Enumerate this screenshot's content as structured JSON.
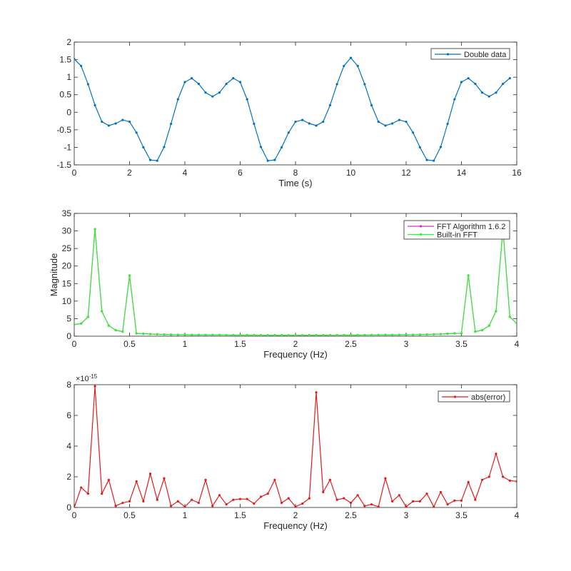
{
  "chart_data": [
    {
      "type": "line",
      "title": "",
      "xlabel": "Time (s)",
      "ylabel": "",
      "xlim": [
        0,
        16
      ],
      "ylim": [
        -1.5,
        2
      ],
      "xticks": [
        0,
        2,
        4,
        6,
        8,
        10,
        12,
        14,
        16
      ],
      "yticks": [
        -1.5,
        -1,
        -0.5,
        0,
        0.5,
        1,
        1.5,
        2
      ],
      "xtick_labels": [
        "0",
        "2",
        "4",
        "6",
        "8",
        "10",
        "12",
        "14",
        "16"
      ],
      "ytick_labels": [
        "-1.5",
        "-1",
        "-0.5",
        "0",
        "0.5",
        "1",
        "1.5",
        "2"
      ],
      "grid": false,
      "legend": "top-right",
      "series": [
        {
          "name": "Double data",
          "color": "#0072bd",
          "marker": "dot",
          "x": [
            0,
            0.25,
            0.5,
            0.75,
            1,
            1.25,
            1.5,
            1.75,
            2,
            2.25,
            2.5,
            2.75,
            3,
            3.25,
            3.5,
            3.75,
            4,
            4.25,
            4.5,
            4.75,
            5,
            5.25,
            5.5,
            5.75,
            6,
            6.25,
            6.5,
            6.75,
            7,
            7.25,
            7.5,
            7.75,
            8,
            8.25,
            8.5,
            8.75,
            9,
            9.25,
            9.5,
            9.75,
            10,
            10.25,
            10.5,
            10.75,
            11,
            11.25,
            11.5,
            11.75,
            12,
            12.25,
            12.5,
            12.75,
            13,
            13.25,
            13.5,
            13.75,
            14,
            14.25,
            14.5,
            14.75,
            15,
            15.25,
            15.5,
            15.75
          ],
          "values": [
            1.52,
            1.32,
            0.8,
            0.2,
            -0.27,
            -0.38,
            -0.32,
            -0.22,
            -0.27,
            -0.58,
            -1.0,
            -1.36,
            -1.38,
            -0.99,
            -0.33,
            0.37,
            0.86,
            0.97,
            0.81,
            0.56,
            0.45,
            0.56,
            0.81,
            0.97,
            0.86,
            0.37,
            -0.33,
            -0.99,
            -1.38,
            -1.36,
            -1.0,
            -0.58,
            -0.27,
            -0.22,
            -0.32,
            -0.38,
            -0.27,
            0.2,
            0.8,
            1.32,
            1.55,
            1.32,
            0.8,
            0.2,
            -0.27,
            -0.38,
            -0.32,
            -0.22,
            -0.27,
            -0.58,
            -1.0,
            -1.36,
            -1.38,
            -0.99,
            -0.33,
            0.37,
            0.86,
            0.97,
            0.81,
            0.56,
            0.45,
            0.56,
            0.81,
            0.97
          ]
        }
      ]
    },
    {
      "type": "line",
      "title": "",
      "xlabel": "Frequency (Hz)",
      "ylabel": "Magnitude",
      "xlim": [
        0,
        4
      ],
      "ylim": [
        0,
        35
      ],
      "xticks": [
        0,
        0.5,
        1,
        1.5,
        2,
        2.5,
        3,
        3.5,
        4
      ],
      "yticks": [
        0,
        5,
        10,
        15,
        20,
        25,
        30,
        35
      ],
      "xtick_labels": [
        "0",
        "0.5",
        "1",
        "1.5",
        "2",
        "2.5",
        "3",
        "3.5",
        "4"
      ],
      "ytick_labels": [
        "0",
        "5",
        "10",
        "15",
        "20",
        "25",
        "30",
        "35"
      ],
      "grid": false,
      "legend": "top-right",
      "series": [
        {
          "name": "FFT Algorithm 1.6.2",
          "color": "#cc33cc",
          "marker": "dot",
          "x": [
            0,
            0.0625,
            0.125,
            0.1875,
            0.25,
            0.3125,
            0.375,
            0.4375,
            0.5,
            0.5625,
            0.625,
            0.6875,
            0.75,
            0.8125,
            0.875,
            0.9375,
            1,
            1.0625,
            1.125,
            1.1875,
            1.25,
            1.3125,
            1.375,
            1.4375,
            1.5,
            1.5625,
            1.625,
            1.6875,
            1.75,
            1.8125,
            1.875,
            1.9375,
            2,
            2.0625,
            2.125,
            2.1875,
            2.25,
            2.3125,
            2.375,
            2.4375,
            2.5,
            2.5625,
            2.625,
            2.6875,
            2.75,
            2.8125,
            2.875,
            2.9375,
            3,
            3.0625,
            3.125,
            3.1875,
            3.25,
            3.3125,
            3.375,
            3.4375,
            3.5,
            3.5625,
            3.625,
            3.6875,
            3.75,
            3.8125,
            3.875,
            3.9375,
            4
          ],
          "values": [
            3.3,
            3.6,
            5.5,
            30.5,
            7.1,
            3.0,
            1.7,
            1.3,
            17.3,
            0.8,
            0.7,
            0.6,
            0.55,
            0.5,
            0.45,
            0.42,
            0.4,
            0.38,
            0.36,
            0.35,
            0.34,
            0.33,
            0.32,
            0.31,
            0.3,
            0.3,
            0.29,
            0.29,
            0.28,
            0.28,
            0.28,
            0.27,
            0.27,
            0.27,
            0.28,
            0.28,
            0.28,
            0.29,
            0.29,
            0.3,
            0.3,
            0.31,
            0.32,
            0.33,
            0.34,
            0.35,
            0.36,
            0.38,
            0.4,
            0.42,
            0.45,
            0.5,
            0.55,
            0.6,
            0.7,
            0.8,
            0.8,
            17.3,
            1.3,
            1.7,
            3.0,
            7.1,
            30.5,
            5.5,
            3.6
          ]
        },
        {
          "name": "Built-in FFT",
          "color": "#33ee33",
          "marker": "dot",
          "x": [
            0,
            0.0625,
            0.125,
            0.1875,
            0.25,
            0.3125,
            0.375,
            0.4375,
            0.5,
            0.5625,
            0.625,
            0.6875,
            0.75,
            0.8125,
            0.875,
            0.9375,
            1,
            1.0625,
            1.125,
            1.1875,
            1.25,
            1.3125,
            1.375,
            1.4375,
            1.5,
            1.5625,
            1.625,
            1.6875,
            1.75,
            1.8125,
            1.875,
            1.9375,
            2,
            2.0625,
            2.125,
            2.1875,
            2.25,
            2.3125,
            2.375,
            2.4375,
            2.5,
            2.5625,
            2.625,
            2.6875,
            2.75,
            2.8125,
            2.875,
            2.9375,
            3,
            3.0625,
            3.125,
            3.1875,
            3.25,
            3.3125,
            3.375,
            3.4375,
            3.5,
            3.5625,
            3.625,
            3.6875,
            3.75,
            3.8125,
            3.875,
            3.9375,
            4
          ],
          "values": [
            3.3,
            3.6,
            5.5,
            30.5,
            7.1,
            3.0,
            1.7,
            1.3,
            17.3,
            0.8,
            0.7,
            0.6,
            0.55,
            0.5,
            0.45,
            0.42,
            0.4,
            0.38,
            0.36,
            0.35,
            0.34,
            0.33,
            0.32,
            0.31,
            0.3,
            0.3,
            0.29,
            0.29,
            0.28,
            0.28,
            0.28,
            0.27,
            0.27,
            0.27,
            0.28,
            0.28,
            0.28,
            0.29,
            0.29,
            0.3,
            0.3,
            0.31,
            0.32,
            0.33,
            0.34,
            0.35,
            0.36,
            0.38,
            0.4,
            0.42,
            0.45,
            0.5,
            0.55,
            0.6,
            0.7,
            0.8,
            0.8,
            17.3,
            1.3,
            1.7,
            3.0,
            7.1,
            30.5,
            5.5,
            3.6
          ]
        }
      ]
    },
    {
      "type": "line",
      "title": "",
      "xlabel": "Frequency (Hz)",
      "ylabel": "",
      "xlim": [
        0,
        4
      ],
      "ylim": [
        0,
        8
      ],
      "y_exponent_label": "×10",
      "y_exponent": "-15",
      "xticks": [
        0,
        0.5,
        1,
        1.5,
        2,
        2.5,
        3,
        3.5,
        4
      ],
      "yticks": [
        0,
        2,
        4,
        6,
        8
      ],
      "xtick_labels": [
        "0",
        "0.5",
        "1",
        "1.5",
        "2",
        "2.5",
        "3",
        "3.5",
        "4"
      ],
      "ytick_labels": [
        "0",
        "2",
        "4",
        "6",
        "8"
      ],
      "grid": false,
      "legend": "top-right",
      "series": [
        {
          "name": "abs(error)",
          "color": "#e31a1c",
          "marker": "dot",
          "x": [
            0,
            0.0625,
            0.125,
            0.1875,
            0.25,
            0.3125,
            0.375,
            0.4375,
            0.5,
            0.5625,
            0.625,
            0.6875,
            0.75,
            0.8125,
            0.875,
            0.9375,
            1,
            1.0625,
            1.125,
            1.1875,
            1.25,
            1.3125,
            1.375,
            1.4375,
            1.5,
            1.5625,
            1.625,
            1.6875,
            1.75,
            1.8125,
            1.875,
            1.9375,
            2,
            2.0625,
            2.125,
            2.1875,
            2.25,
            2.3125,
            2.375,
            2.4375,
            2.5,
            2.5625,
            2.625,
            2.6875,
            2.75,
            2.8125,
            2.875,
            2.9375,
            3,
            3.0625,
            3.125,
            3.1875,
            3.25,
            3.3125,
            3.375,
            3.4375,
            3.5,
            3.5625,
            3.625,
            3.6875,
            3.75,
            3.8125,
            3.875,
            3.9375,
            4
          ],
          "values": [
            0,
            1.3,
            0.9,
            7.9,
            0.9,
            1.8,
            0.1,
            0.3,
            0.4,
            1.7,
            0.4,
            2.2,
            0.5,
            1.9,
            0.1,
            0.4,
            0.05,
            0.5,
            0.3,
            1.8,
            0.1,
            0.8,
            0.2,
            0.5,
            0.55,
            0.55,
            0.25,
            0.7,
            0.9,
            1.8,
            0.3,
            0.6,
            0.05,
            0.25,
            0.6,
            7.5,
            1.0,
            1.8,
            0.5,
            0.6,
            0.3,
            0.8,
            0.1,
            0.2,
            0.05,
            1.9,
            0.4,
            0.8,
            0.05,
            0.4,
            0.4,
            0.9,
            0.05,
            1.0,
            0.2,
            0.45,
            0.45,
            1.65,
            0.5,
            1.8,
            2.0,
            3.5,
            2.0,
            1.75,
            1.7
          ]
        }
      ]
    }
  ]
}
